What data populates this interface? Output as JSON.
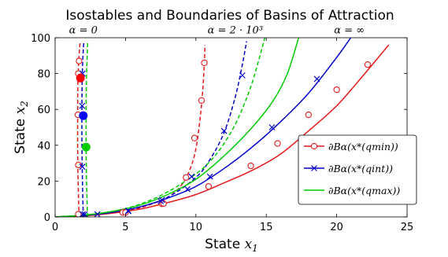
{
  "chart_data": {
    "type": "line",
    "title": "Isostables and Boundaries of Basins of Attraction",
    "xlabel": "State x₁",
    "ylabel": "State x₂",
    "xlim": [
      0,
      25
    ],
    "ylim": [
      0,
      100
    ],
    "xticks": [
      "0",
      "5",
      "10",
      "15",
      "20",
      "25"
    ],
    "yticks": [
      "0",
      "20",
      "40",
      "60",
      "80",
      "100"
    ],
    "grid": false,
    "legend_position": "right",
    "annotations": [
      {
        "text": "α = 0",
        "x": 2.0,
        "y": 101
      },
      {
        "text": "α = 2 · 10³",
        "x": 12.8,
        "y": 101
      },
      {
        "text": "α = ∞",
        "x": 20.9,
        "y": 101
      }
    ],
    "legend": [
      {
        "label": "∂Bα(x*(qmin))",
        "color": "#e41a1c",
        "marker": "circle"
      },
      {
        "label": "∂Bα(x*(qint))",
        "color": "#0000cc",
        "marker": "x"
      },
      {
        "label": "∂Bα(x*(qmax))",
        "color": "#00cc00",
        "marker": "none"
      }
    ],
    "equilibria": [
      {
        "x": 1.8,
        "y": 77.5,
        "color": "#ff0000"
      },
      {
        "x": 2.0,
        "y": 56.5,
        "color": "#0000ff"
      },
      {
        "x": 2.2,
        "y": 39.0,
        "color": "#00cc00"
      }
    ],
    "series": [
      {
        "name": "∂Bα(x*(qmin))",
        "alpha": "∞",
        "style": "solid",
        "color": "#e41a1c",
        "marker": "circle",
        "x": [
          0,
          2,
          4,
          6,
          8,
          10,
          12,
          14,
          16,
          18,
          20,
          22,
          23.7
        ],
        "y": [
          0,
          0.6,
          2,
          4.3,
          8,
          12.5,
          19,
          26,
          35,
          48,
          62,
          80,
          96
        ],
        "markers_x": [
          4.8,
          7.6,
          10.9,
          13.9,
          15.8,
          18.0,
          20.0,
          22.2
        ],
        "markers_y": [
          2.5,
          7.3,
          17,
          28.5,
          41,
          57,
          71,
          85
        ]
      },
      {
        "name": "∂Bα(x*(qmin)) α=2·10³",
        "alpha": "2·10³",
        "style": "dashed",
        "color": "#e41a1c",
        "marker": "circle",
        "x": [
          0,
          2,
          4,
          6,
          8,
          9,
          9.6,
          10,
          10.3,
          10.5,
          10.6,
          10.65
        ],
        "y": [
          0,
          0.6,
          2.3,
          5,
          11,
          18,
          27,
          38,
          55,
          72,
          86,
          96
        ],
        "markers_x": [
          5.0,
          7.7,
          9.3,
          9.9,
          10.4,
          10.6
        ],
        "markers_y": [
          2.5,
          7.5,
          22,
          44,
          65,
          86
        ]
      },
      {
        "name": "∂Bα(x*(qmin)) α=0",
        "alpha": "0",
        "style": "dashed",
        "color": "#e41a1c",
        "marker": "circle",
        "x": [
          1.7,
          1.62,
          1.6,
          1.62,
          1.7,
          1.78
        ],
        "y": [
          0,
          25,
          50,
          75,
          90,
          98
        ],
        "markers_x": [
          1.65,
          1.65,
          1.62,
          1.65,
          1.7
        ],
        "markers_y": [
          1.5,
          29,
          57,
          80,
          87
        ]
      },
      {
        "name": "∂Bα(x*(qint))",
        "alpha": "∞",
        "style": "solid",
        "color": "#0000cc",
        "marker": "x",
        "x": [
          0,
          2,
          4,
          6,
          8,
          10,
          12,
          14,
          16,
          18,
          20,
          21
        ],
        "y": [
          0,
          0.9,
          2.5,
          5.5,
          10.5,
          17,
          27,
          39,
          53,
          69,
          89,
          100
        ],
        "markers_x": [
          3.0,
          5.2,
          7.5,
          9.4,
          11.0,
          15.4,
          18.6
        ],
        "markers_y": [
          1.5,
          3.2,
          8.8,
          15.5,
          22.5,
          50,
          77
        ]
      },
      {
        "name": "∂Bα(x*(qint)) α=2·10³",
        "alpha": "2·10³",
        "style": "dashed",
        "color": "#0000cc",
        "marker": "x",
        "x": [
          0,
          2,
          4,
          6,
          8,
          10,
          11,
          12,
          12.8,
          13.3,
          13.6
        ],
        "y": [
          0,
          0.8,
          2.5,
          5.5,
          11,
          22,
          32,
          47,
          67,
          85,
          98
        ],
        "markers_x": [
          2.1,
          5.2,
          7.6,
          9.7,
          12.0,
          13.3
        ],
        "markers_y": [
          1.5,
          3.5,
          9.5,
          22.5,
          48,
          79
        ]
      },
      {
        "name": "∂Bα(x*(qint)) α=0",
        "alpha": "0",
        "style": "dashed",
        "color": "#0000cc",
        "marker": "x",
        "x": [
          2.0,
          1.93,
          1.9,
          1.92,
          1.98,
          2.04
        ],
        "y": [
          0,
          25,
          50,
          75,
          90,
          98
        ],
        "markers_x": [
          1.96,
          1.93,
          1.92,
          1.95
        ],
        "markers_y": [
          1.5,
          28,
          62,
          80
        ]
      },
      {
        "name": "∂Bα(x*(qmax))",
        "alpha": "∞",
        "style": "solid",
        "color": "#00cc00",
        "marker": "none",
        "x": [
          0,
          2,
          4,
          6,
          8,
          10,
          12,
          14,
          15.5,
          16.5,
          17.3
        ],
        "y": [
          0,
          1,
          3,
          6.5,
          12.5,
          21,
          34,
          50,
          65,
          80,
          100
        ]
      },
      {
        "name": "∂Bα(x*(qmax)) α=2·10³",
        "alpha": "2·10³",
        "style": "dashed",
        "color": "#00cc00",
        "marker": "none",
        "x": [
          0,
          2,
          4,
          6,
          8,
          10,
          11,
          12,
          13,
          14,
          14.9
        ],
        "y": [
          0,
          1,
          3,
          7,
          14,
          24,
          31,
          41,
          55,
          75,
          100
        ]
      },
      {
        "name": "∂Bα(x*(qmax)) α=0",
        "alpha": "0",
        "style": "dashed",
        "color": "#00cc00",
        "marker": "none",
        "x": [
          2.3,
          2.22,
          2.2,
          2.22,
          2.28,
          2.32
        ],
        "y": [
          0,
          25,
          50,
          75,
          90,
          98
        ]
      }
    ]
  }
}
